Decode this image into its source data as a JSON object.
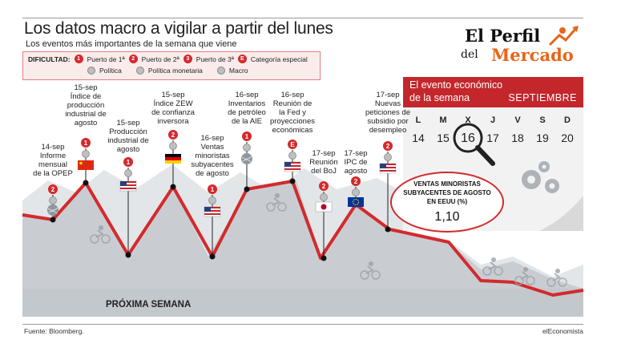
{
  "header": {
    "title": "Los datos macro a vigilar a partir del lunes",
    "subtitle": "Los eventos más importantes de la semana que viene"
  },
  "legend": {
    "label": "DIFICULTAD:",
    "items": [
      {
        "badge": "1",
        "text": "Puerto de 1ª"
      },
      {
        "badge": "2",
        "text": "Puerto de 2ª"
      },
      {
        "badge": "3",
        "text": "Puerto de 3ª"
      },
      {
        "badge": "E",
        "text": "Categoría especial"
      },
      {
        "badge": "",
        "text": "Política"
      },
      {
        "badge": "",
        "text": "Política monetaria"
      },
      {
        "badge": "",
        "text": "Macro"
      }
    ]
  },
  "brand": {
    "line1": "El Perfil",
    "line2": "del",
    "line3": "Mercado"
  },
  "calendar": {
    "head1": "El evento económico",
    "head2": "de la semana",
    "month": "SEPTIEMBRE",
    "days": [
      {
        "letter": "L",
        "num": "14"
      },
      {
        "letter": "M",
        "num": "15"
      },
      {
        "letter": "X",
        "num": "16"
      },
      {
        "letter": "J",
        "num": "17"
      },
      {
        "letter": "V",
        "num": "18"
      },
      {
        "letter": "S",
        "num": "19"
      },
      {
        "letter": "D",
        "num": "20"
      }
    ],
    "selected_index": 2
  },
  "highlight": {
    "line1": "VENTAS MINORISTAS",
    "line2": "SUBYACENTES DE AGOSTO",
    "line3": "EN EEUU (%)",
    "value": "1,10"
  },
  "events": [
    {
      "lines": [
        "14-sep",
        "Informe",
        "mensual",
        "de la OPEP"
      ],
      "badge": "2",
      "flag": "opep"
    },
    {
      "lines": [
        "15-sep",
        "Índice de",
        "producción",
        "industrial de",
        "agosto"
      ],
      "badge": "1",
      "flag": "china"
    },
    {
      "lines": [
        "15-sep",
        "Producción",
        "industrial de",
        "agosto"
      ],
      "badge": "1",
      "flag": "usa"
    },
    {
      "lines": [
        "15-sep",
        "Índice ZEW",
        "de confianza",
        "inversora"
      ],
      "badge": "2",
      "flag": "germany"
    },
    {
      "lines": [
        "16-sep",
        "Ventas",
        "minoristas",
        "subyacentes",
        "de agosto"
      ],
      "badge": "1",
      "flag": "usa"
    },
    {
      "lines": [
        "16-sep",
        "Inventarios",
        "de petróleo",
        "de la AIE"
      ],
      "badge": "1",
      "flag": "globe"
    },
    {
      "lines": [
        "16-sep",
        "Reunión de",
        "la Fed y",
        "proyecciones",
        "económicas"
      ],
      "badge": "E",
      "flag": "usa"
    },
    {
      "lines": [
        "17-sep",
        "Reunión",
        "del BoJ"
      ],
      "badge": "2",
      "flag": "japan"
    },
    {
      "lines": [
        "17-sep",
        "IPC de",
        "agosto"
      ],
      "badge": "2",
      "flag": "eu"
    },
    {
      "lines": [
        "17-sep",
        "Nuevas",
        "peticiones de",
        "subsidio por",
        "desempleo"
      ],
      "badge": "2",
      "flag": "usa"
    }
  ],
  "bottom_label": "PRÓXIMA SEMANA",
  "footer": {
    "source": "Fuente: Bloomberg.",
    "credit": "elEconomista"
  },
  "colors": {
    "accent": "#d32a2c",
    "mountain": "#c9cdd2",
    "mountain_back": "#e3e6e9",
    "brand_orange": "#e8651a"
  }
}
